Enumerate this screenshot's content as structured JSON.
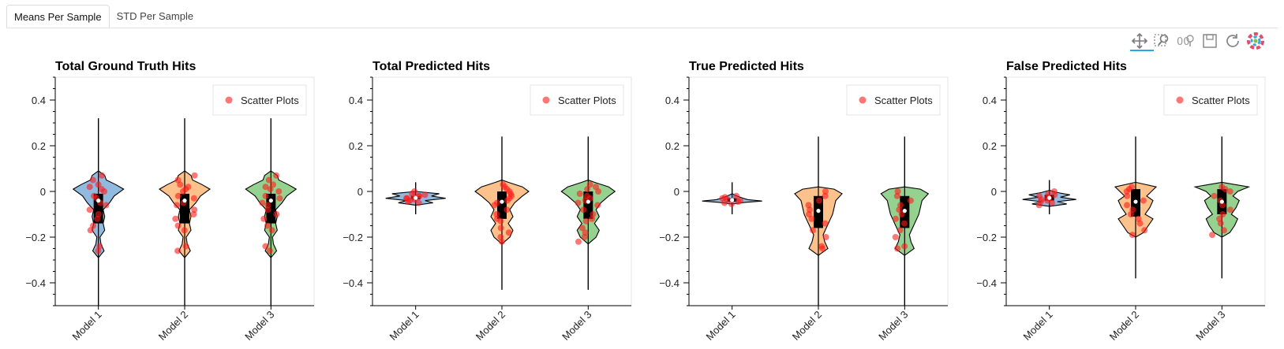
{
  "tabs": [
    {
      "label": "Means Per Sample",
      "active": true
    },
    {
      "label": "STD Per Sample",
      "active": false
    }
  ],
  "toolbar": {
    "tools": [
      "pan-icon",
      "box-zoom-icon",
      "wheel-zoom-icon",
      "save-icon",
      "reset-icon",
      "bokeh-logo-icon"
    ],
    "active_tool": "pan-icon"
  },
  "chart_data": [
    {
      "type": "violin",
      "title": "Total Ground Truth Hits",
      "categories": [
        "Model 1",
        "Model 2",
        "Model 3"
      ],
      "ylim": [
        -0.5,
        0.5
      ],
      "yticks": [
        -0.4,
        -0.2,
        0,
        0.2,
        0.4
      ],
      "ytick_labels": [
        "−0.4",
        "−0.2",
        "0",
        "0.2",
        "0.4"
      ],
      "legend": {
        "label": "Scatter Plots",
        "placement": "top-right"
      },
      "colors": [
        "#8ab6dc",
        "#fdbe85",
        "#90d089"
      ],
      "violins": [
        {
          "whisker": [
            -0.62,
            0.32
          ],
          "box": [
            -0.14,
            -0.01
          ],
          "median": -0.04,
          "profile": [
            [
              -0.29,
              0
            ],
            [
              -0.26,
              0.18
            ],
            [
              -0.23,
              0.08
            ],
            [
              -0.2,
              0.05
            ],
            [
              -0.17,
              0.2
            ],
            [
              -0.14,
              0.15
            ],
            [
              -0.11,
              0.2
            ],
            [
              -0.08,
              0.15
            ],
            [
              -0.05,
              0.35
            ],
            [
              -0.02,
              0.5
            ],
            [
              0.01,
              0.8
            ],
            [
              0.03,
              0.55
            ],
            [
              0.05,
              0.25
            ],
            [
              0.07,
              0.2
            ],
            [
              0.09,
              0
            ]
          ],
          "points": [
            -0.26,
            -0.24,
            -0.17,
            -0.15,
            -0.12,
            -0.1,
            -0.08,
            -0.06,
            -0.05,
            -0.03,
            -0.02,
            0,
            0.01,
            0.02,
            0.03,
            0.05,
            0.07
          ]
        },
        {
          "whisker": [
            -0.62,
            0.32
          ],
          "box": [
            -0.14,
            -0.01
          ],
          "median": -0.04,
          "profile": [
            [
              -0.29,
              0
            ],
            [
              -0.26,
              0.18
            ],
            [
              -0.23,
              0.08
            ],
            [
              -0.2,
              0.05
            ],
            [
              -0.17,
              0.2
            ],
            [
              -0.14,
              0.15
            ],
            [
              -0.11,
              0.2
            ],
            [
              -0.08,
              0.15
            ],
            [
              -0.05,
              0.35
            ],
            [
              -0.02,
              0.5
            ],
            [
              0.01,
              0.8
            ],
            [
              0.03,
              0.55
            ],
            [
              0.05,
              0.25
            ],
            [
              0.07,
              0.2
            ],
            [
              0.09,
              0
            ]
          ],
          "points": [
            -0.26,
            -0.24,
            -0.17,
            -0.15,
            -0.12,
            -0.1,
            -0.08,
            -0.06,
            -0.05,
            -0.03,
            -0.02,
            0,
            0.01,
            0.02,
            0.03,
            0.05,
            0.07
          ]
        },
        {
          "whisker": [
            -0.62,
            0.32
          ],
          "box": [
            -0.14,
            -0.01
          ],
          "median": -0.04,
          "profile": [
            [
              -0.29,
              0
            ],
            [
              -0.26,
              0.18
            ],
            [
              -0.23,
              0.08
            ],
            [
              -0.2,
              0.05
            ],
            [
              -0.17,
              0.2
            ],
            [
              -0.14,
              0.15
            ],
            [
              -0.11,
              0.2
            ],
            [
              -0.08,
              0.15
            ],
            [
              -0.05,
              0.35
            ],
            [
              -0.02,
              0.5
            ],
            [
              0.01,
              0.8
            ],
            [
              0.03,
              0.55
            ],
            [
              0.05,
              0.25
            ],
            [
              0.07,
              0.2
            ],
            [
              0.09,
              0
            ]
          ],
          "points": [
            -0.26,
            -0.24,
            -0.17,
            -0.15,
            -0.12,
            -0.1,
            -0.08,
            -0.06,
            -0.05,
            -0.03,
            -0.02,
            0,
            0.01,
            0.02,
            0.03,
            0.05,
            0.07
          ]
        }
      ]
    },
    {
      "type": "violin",
      "title": "Total Predicted Hits",
      "categories": [
        "Model 1",
        "Model 2",
        "Model 3"
      ],
      "ylim": [
        -0.5,
        0.5
      ],
      "yticks": [
        -0.4,
        -0.2,
        0,
        0.2,
        0.4
      ],
      "ytick_labels": [
        "−0.4",
        "−0.2",
        "0",
        "0.2",
        "0.4"
      ],
      "legend": {
        "label": "Scatter Plots",
        "placement": "top-right"
      },
      "colors": [
        "#8ab6dc",
        "#fdbe85",
        "#90d089"
      ],
      "violins": [
        {
          "whisker": [
            -0.1,
            0.04
          ],
          "box": [
            -0.035,
            -0.02
          ],
          "median": -0.028,
          "profile": [
            [
              -0.06,
              0
            ],
            [
              -0.05,
              0.55
            ],
            [
              -0.04,
              0.3
            ],
            [
              -0.03,
              0.95
            ],
            [
              -0.02,
              0.5
            ],
            [
              -0.01,
              0.75
            ],
            [
              0.0,
              0
            ]
          ],
          "points": [
            -0.05,
            -0.045,
            -0.04,
            -0.035,
            -0.03,
            -0.03,
            -0.025,
            -0.02,
            -0.02,
            -0.015,
            -0.01,
            0.0
          ]
        },
        {
          "whisker": [
            -0.43,
            0.24
          ],
          "box": [
            -0.12,
            0.0
          ],
          "median": -0.045,
          "profile": [
            [
              -0.23,
              0
            ],
            [
              -0.2,
              0.25
            ],
            [
              -0.17,
              0.35
            ],
            [
              -0.14,
              0.2
            ],
            [
              -0.11,
              0.35
            ],
            [
              -0.08,
              0.25
            ],
            [
              -0.05,
              0.4
            ],
            [
              -0.02,
              0.65
            ],
            [
              0.0,
              0.85
            ],
            [
              0.02,
              0.65
            ],
            [
              0.04,
              0.2
            ],
            [
              0.05,
              0
            ]
          ],
          "points": [
            -0.22,
            -0.2,
            -0.18,
            -0.16,
            -0.13,
            -0.12,
            -0.1,
            -0.08,
            -0.06,
            -0.05,
            -0.04,
            -0.03,
            -0.02,
            -0.01,
            0.0,
            0.01,
            0.02,
            0.03
          ]
        },
        {
          "whisker": [
            -0.43,
            0.24
          ],
          "box": [
            -0.12,
            0.0
          ],
          "median": -0.045,
          "profile": [
            [
              -0.23,
              0
            ],
            [
              -0.2,
              0.25
            ],
            [
              -0.17,
              0.35
            ],
            [
              -0.14,
              0.2
            ],
            [
              -0.11,
              0.35
            ],
            [
              -0.08,
              0.25
            ],
            [
              -0.05,
              0.4
            ],
            [
              -0.02,
              0.65
            ],
            [
              0.0,
              0.85
            ],
            [
              0.02,
              0.65
            ],
            [
              0.04,
              0.2
            ],
            [
              0.05,
              0
            ]
          ],
          "points": [
            -0.22,
            -0.2,
            -0.18,
            -0.16,
            -0.13,
            -0.12,
            -0.1,
            -0.08,
            -0.06,
            -0.05,
            -0.04,
            -0.03,
            -0.02,
            -0.01,
            0.0,
            0.01,
            0.02,
            0.03
          ]
        }
      ]
    },
    {
      "type": "violin",
      "title": "True Predicted Hits",
      "categories": [
        "Model 1",
        "Model 2",
        "Model 3"
      ],
      "ylim": [
        -0.5,
        0.5
      ],
      "yticks": [
        -0.4,
        -0.2,
        0,
        0.2,
        0.4
      ],
      "ytick_labels": [
        "−0.4",
        "−0.2",
        "0",
        "0.2",
        "0.4"
      ],
      "legend": {
        "label": "Scatter Plots",
        "placement": "top-right"
      },
      "colors": [
        "#8ab6dc",
        "#fdbe85",
        "#90d089"
      ],
      "violins": [
        {
          "whisker": [
            -0.1,
            0.04
          ],
          "box": [
            -0.045,
            -0.03
          ],
          "median": -0.038,
          "profile": [
            [
              -0.055,
              0
            ],
            [
              -0.048,
              0.4
            ],
            [
              -0.042,
              0.95
            ],
            [
              -0.036,
              0.5
            ],
            [
              -0.03,
              0.35
            ],
            [
              -0.02,
              0.15
            ],
            [
              -0.01,
              0
            ]
          ],
          "points": [
            -0.055,
            -0.05,
            -0.045,
            -0.04,
            -0.035,
            -0.03,
            -0.025,
            -0.02
          ]
        },
        {
          "whisker": [
            -0.62,
            0.24
          ],
          "box": [
            -0.16,
            -0.02
          ],
          "median": -0.085,
          "profile": [
            [
              -0.28,
              0
            ],
            [
              -0.25,
              0.3
            ],
            [
              -0.22,
              0.2
            ],
            [
              -0.19,
              0.15
            ],
            [
              -0.16,
              0.25
            ],
            [
              -0.13,
              0.35
            ],
            [
              -0.1,
              0.45
            ],
            [
              -0.07,
              0.5
            ],
            [
              -0.04,
              0.55
            ],
            [
              -0.01,
              0.75
            ],
            [
              0.01,
              0.5
            ],
            [
              0.02,
              0
            ]
          ],
          "points": [
            -0.25,
            -0.24,
            -0.2,
            -0.17,
            -0.14,
            -0.12,
            -0.1,
            -0.08,
            -0.06,
            -0.04,
            -0.02,
            0.0
          ]
        },
        {
          "whisker": [
            -0.62,
            0.24
          ],
          "box": [
            -0.16,
            -0.02
          ],
          "median": -0.085,
          "profile": [
            [
              -0.28,
              0
            ],
            [
              -0.25,
              0.3
            ],
            [
              -0.22,
              0.2
            ],
            [
              -0.19,
              0.15
            ],
            [
              -0.16,
              0.25
            ],
            [
              -0.13,
              0.35
            ],
            [
              -0.1,
              0.45
            ],
            [
              -0.07,
              0.5
            ],
            [
              -0.04,
              0.55
            ],
            [
              -0.01,
              0.75
            ],
            [
              0.01,
              0.5
            ],
            [
              0.02,
              0
            ]
          ],
          "points": [
            -0.25,
            -0.24,
            -0.2,
            -0.17,
            -0.14,
            -0.12,
            -0.1,
            -0.08,
            -0.06,
            -0.04,
            -0.02,
            0.0
          ]
        }
      ]
    },
    {
      "type": "violin",
      "title": "False Predicted Hits",
      "categories": [
        "Model 1",
        "Model 2",
        "Model 3"
      ],
      "ylim": [
        -0.5,
        0.5
      ],
      "yticks": [
        -0.4,
        -0.2,
        0,
        0.2,
        0.4
      ],
      "ytick_labels": [
        "−0.4",
        "−0.2",
        "0",
        "0.2",
        "0.4"
      ],
      "legend": {
        "label": "Scatter Plots",
        "placement": "top-right"
      },
      "colors": [
        "#8ab6dc",
        "#fdbe85",
        "#90d089"
      ],
      "violins": [
        {
          "whisker": [
            -0.1,
            0.05
          ],
          "box": [
            -0.04,
            -0.015
          ],
          "median": -0.028,
          "profile": [
            [
              -0.065,
              0
            ],
            [
              -0.055,
              0.55
            ],
            [
              -0.045,
              0.25
            ],
            [
              -0.035,
              0.85
            ],
            [
              -0.025,
              0.35
            ],
            [
              -0.015,
              0.65
            ],
            [
              -0.005,
              0.25
            ],
            [
              0.005,
              0
            ]
          ],
          "points": [
            -0.06,
            -0.05,
            -0.045,
            -0.04,
            -0.035,
            -0.03,
            -0.025,
            -0.02,
            -0.015,
            -0.01,
            0.0
          ]
        },
        {
          "whisker": [
            -0.38,
            0.24
          ],
          "box": [
            -0.11,
            0.01
          ],
          "median": -0.045,
          "profile": [
            [
              -0.2,
              0
            ],
            [
              -0.18,
              0.25
            ],
            [
              -0.15,
              0.4
            ],
            [
              -0.12,
              0.55
            ],
            [
              -0.1,
              0.3
            ],
            [
              -0.07,
              0.45
            ],
            [
              -0.04,
              0.55
            ],
            [
              -0.02,
              0.35
            ],
            [
              0.0,
              0.5
            ],
            [
              0.02,
              0.65
            ],
            [
              0.04,
              0
            ]
          ],
          "points": [
            -0.19,
            -0.17,
            -0.14,
            -0.12,
            -0.1,
            -0.08,
            -0.06,
            -0.04,
            -0.02,
            0.0,
            0.01,
            0.02
          ]
        },
        {
          "whisker": [
            -0.38,
            0.24
          ],
          "box": [
            -0.1,
            0.01
          ],
          "median": -0.045,
          "profile": [
            [
              -0.2,
              0
            ],
            [
              -0.18,
              0.25
            ],
            [
              -0.15,
              0.4
            ],
            [
              -0.12,
              0.5
            ],
            [
              -0.1,
              0.3
            ],
            [
              -0.07,
              0.45
            ],
            [
              -0.04,
              0.55
            ],
            [
              -0.02,
              0.35
            ],
            [
              0.0,
              0.5
            ],
            [
              0.02,
              0.85
            ],
            [
              0.04,
              0
            ]
          ],
          "points": [
            -0.19,
            -0.17,
            -0.14,
            -0.12,
            -0.1,
            -0.08,
            -0.06,
            -0.04,
            -0.02,
            0.0,
            0.01,
            0.02
          ]
        }
      ]
    }
  ]
}
